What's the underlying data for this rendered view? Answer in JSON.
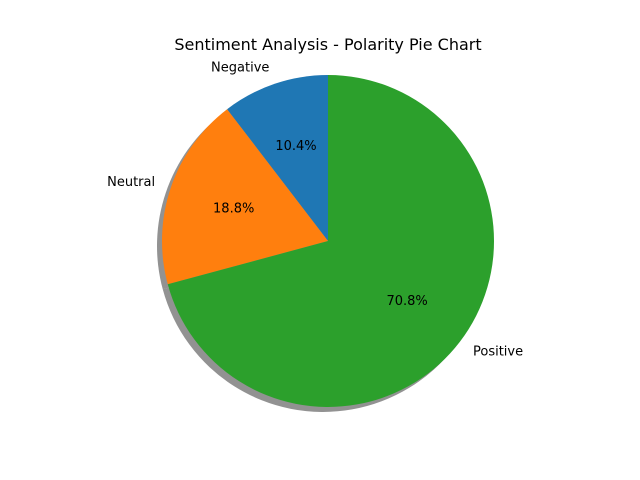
{
  "chart_data": {
    "type": "pie",
    "title": "Sentiment Analysis - Polarity Pie Chart",
    "categories": [
      "Negative",
      "Neutral",
      "Positive"
    ],
    "values": [
      10.4,
      18.8,
      70.8
    ],
    "value_labels": [
      "10.4%",
      "18.8%",
      "70.8%"
    ],
    "colors": [
      "#1f77b4",
      "#ff7f0e",
      "#2ca02c"
    ],
    "start_angle_deg": 90,
    "direction": "counterclockwise",
    "shadow": true,
    "legend": "none"
  }
}
